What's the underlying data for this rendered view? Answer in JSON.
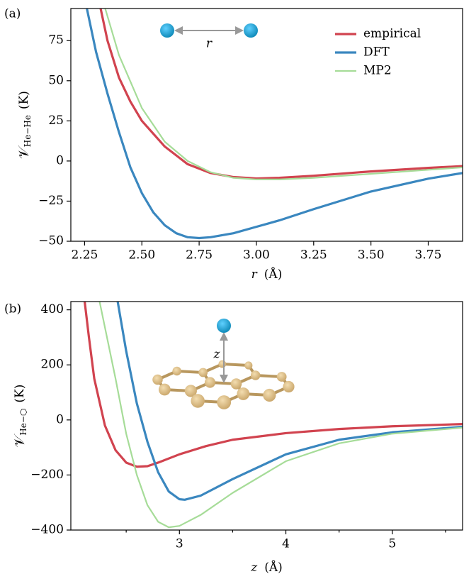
{
  "chart_data": [
    {
      "type": "line",
      "panel_label": "(a)",
      "ylabel": {
        "symbol": "𝒱",
        "subscript": "He−He",
        "unit": "(K)"
      },
      "xlabel": {
        "symbol": "r",
        "unit": "(Å)"
      },
      "inset_label": "r",
      "legend": "upper right",
      "xlim": [
        2.19,
        3.9
      ],
      "ylim": [
        -50,
        95
      ],
      "xticks": [
        {
          "value": 2.25,
          "label": "2.25"
        },
        {
          "value": 2.5,
          "label": "2.50"
        },
        {
          "value": 2.75,
          "label": "2.75"
        },
        {
          "value": 3.0,
          "label": "3.00"
        },
        {
          "value": 3.25,
          "label": "3.25"
        },
        {
          "value": 3.5,
          "label": "3.50"
        },
        {
          "value": 3.75,
          "label": "3.75"
        }
      ],
      "yticks": [
        {
          "value": -50,
          "label": "−50"
        },
        {
          "value": -25,
          "label": "−25"
        },
        0,
        25,
        50,
        75
      ],
      "series": [
        {
          "name": "empirical",
          "color": "#d1434f",
          "x": [
            2.32,
            2.35,
            2.4,
            2.45,
            2.5,
            2.6,
            2.7,
            2.8,
            2.9,
            3.0,
            3.1,
            3.25,
            3.5,
            3.75,
            3.9
          ],
          "values": [
            95,
            75,
            52,
            37,
            25,
            9,
            -2,
            -7.5,
            -10,
            -10.9,
            -10.5,
            -9.2,
            -6.5,
            -4.3,
            -3.2
          ]
        },
        {
          "name": "DFT",
          "color": "#3a87bf",
          "x": [
            2.26,
            2.3,
            2.35,
            2.4,
            2.45,
            2.5,
            2.55,
            2.6,
            2.65,
            2.7,
            2.75,
            2.8,
            2.9,
            3.0,
            3.1,
            3.25,
            3.5,
            3.75,
            3.9
          ],
          "values": [
            95,
            68,
            42,
            18,
            -4,
            -20,
            -32,
            -40,
            -45,
            -47.5,
            -48,
            -47.5,
            -45,
            -41,
            -37,
            -30,
            -19,
            -11,
            -7.5
          ]
        },
        {
          "name": "MP2",
          "color": "#a6dc98",
          "x": [
            2.34,
            2.4,
            2.5,
            2.6,
            2.7,
            2.8,
            2.9,
            3.0,
            3.1,
            3.25,
            3.5,
            3.75,
            3.9
          ],
          "values": [
            95,
            66,
            33,
            12,
            0,
            -7,
            -10.5,
            -11.5,
            -11.5,
            -10.5,
            -8,
            -5.5,
            -4
          ]
        }
      ]
    },
    {
      "type": "line",
      "panel_label": "(b)",
      "ylabel": {
        "symbol": "𝒱",
        "subscript": "He−⬡",
        "unit": "(K)"
      },
      "xlabel": {
        "symbol": "z",
        "unit": "(Å)"
      },
      "inset_label": "z",
      "xlim": [
        1.98,
        5.66
      ],
      "ylim": [
        -400,
        430
      ],
      "xticks": [
        3,
        4,
        5
      ],
      "xminorticks": [
        2.5,
        3.5,
        4.5,
        5.5
      ],
      "yticks": [
        {
          "value": -400,
          "label": "−400"
        },
        {
          "value": -200,
          "label": "−200"
        },
        0,
        200,
        400
      ],
      "series": [
        {
          "name": "empirical",
          "color": "#d1434f",
          "x": [
            2.11,
            2.15,
            2.2,
            2.3,
            2.4,
            2.5,
            2.6,
            2.7,
            2.8,
            3.0,
            3.25,
            3.5,
            4.0,
            4.5,
            5.0,
            5.66
          ],
          "values": [
            430,
            300,
            150,
            -20,
            -110,
            -155,
            -170,
            -168,
            -155,
            -125,
            -95,
            -72,
            -48,
            -33,
            -23,
            -15
          ]
        },
        {
          "name": "DFT",
          "color": "#3a87bf",
          "x": [
            2.42,
            2.5,
            2.6,
            2.7,
            2.8,
            2.9,
            3.0,
            3.05,
            3.2,
            3.5,
            4.0,
            4.5,
            5.0,
            5.66
          ],
          "values": [
            430,
            250,
            60,
            -80,
            -190,
            -260,
            -288,
            -290,
            -275,
            -215,
            -125,
            -72,
            -45,
            -25
          ]
        },
        {
          "name": "MP2",
          "color": "#a6dc98",
          "x": [
            2.25,
            2.4,
            2.5,
            2.6,
            2.7,
            2.8,
            2.9,
            3.0,
            3.2,
            3.5,
            4.0,
            4.5,
            5.0,
            5.66
          ],
          "values": [
            430,
            150,
            -50,
            -200,
            -310,
            -370,
            -390,
            -385,
            -345,
            -265,
            -150,
            -85,
            -50,
            -28
          ]
        }
      ]
    }
  ]
}
